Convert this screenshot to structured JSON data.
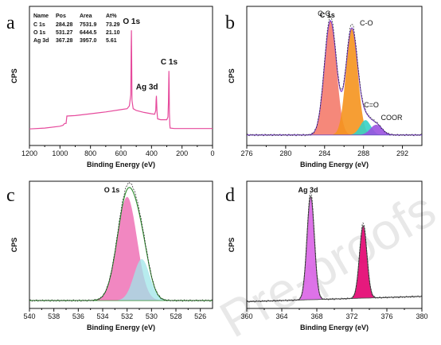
{
  "watermark": "Pre-proofs",
  "colors": {
    "survey": "#e64a9c",
    "envelope_b": "#7b3fd0",
    "envelope_c": "#2e8b2e",
    "envelope_d": "#555555",
    "cc_peak": "#f47b6b",
    "co_peak": "#f5941e",
    "ceqo_peak": "#34d1c7",
    "coor_peak": "#9a52e0",
    "o_peak1": "#f07aba",
    "o_peak2": "#9fe6e8",
    "ag_peak1": "#d963e6",
    "ag_peak2": "#e3006f",
    "background_line": "#6a4fbf"
  },
  "chart_data": [
    {
      "panel": "a",
      "type": "line",
      "xlabel": "Binding Energy (eV)",
      "ylabel": "CPS",
      "xlim": [
        1200,
        0
      ],
      "xticks": [
        1200,
        1000,
        800,
        600,
        400,
        200,
        0
      ],
      "x_reversed": true,
      "series": [
        {
          "x": [
            1200,
            1100,
            1000,
            980,
            970,
            960,
            955,
            900,
            800,
            700,
            600,
            560,
            545,
            536,
            533,
            531.5,
            530,
            528,
            520,
            500,
            450,
            400,
            380,
            372,
            370,
            368,
            366,
            364,
            360,
            340,
            300,
            292,
            289,
            286,
            284.5,
            283,
            280,
            278,
            250,
            100,
            0
          ],
          "y": [
            11,
            12,
            14,
            15,
            17,
            17,
            25,
            25.5,
            27.5,
            29.5,
            32,
            33,
            36,
            48,
            100,
            118,
            90,
            42,
            33,
            31,
            29,
            27.5,
            27,
            31,
            42,
            47,
            40,
            30,
            22,
            21,
            21,
            24,
            40,
            74,
            60,
            29,
            16,
            12,
            11.5,
            11.5,
            11.5
          ]
        }
      ],
      "peak_labels": [
        "O 1s",
        "Ag 3d",
        "C 1s"
      ],
      "table": {
        "headers": [
          "Name",
          "Pos",
          "Area",
          "At%"
        ],
        "rows": [
          [
            "C 1s",
            "284.28",
            "7531.9",
            "73.29"
          ],
          [
            "O 1s",
            "531.27",
            "6444.5",
            "21.10"
          ],
          [
            "Ag 3d",
            "367.28",
            "3957.0",
            "5.61"
          ]
        ]
      }
    },
    {
      "panel": "b",
      "type": "area",
      "title": "C 1s",
      "xlabel": "Binding Energy (eV)",
      "ylabel": "CPS",
      "xlim": [
        276,
        294
      ],
      "xticks": [
        276,
        280,
        284,
        288,
        292
      ],
      "series": [
        {
          "name": "C-C",
          "center": 284.6,
          "height": 100,
          "sigma": 0.62
        },
        {
          "name": "C-O",
          "center": 286.8,
          "height": 93,
          "sigma": 0.6
        },
        {
          "name": "C=O",
          "center": 288.2,
          "height": 13,
          "sigma": 0.55
        },
        {
          "name": "COOR",
          "center": 289.3,
          "height": 9,
          "sigma": 0.6
        }
      ],
      "baseline": 5
    },
    {
      "panel": "c",
      "type": "area",
      "title": "O 1s",
      "xlabel": "Binding Energy (eV)",
      "ylabel": "CPS",
      "xlim": [
        540,
        525
      ],
      "xticks": [
        540,
        538,
        536,
        534,
        532,
        530,
        528,
        526
      ],
      "x_reversed": true,
      "series": [
        {
          "name": "",
          "center": 532.0,
          "height": 100,
          "sigma": 0.8
        },
        {
          "name": "",
          "center": 530.8,
          "height": 40,
          "sigma": 0.65
        }
      ],
      "baseline": 3
    },
    {
      "panel": "d",
      "type": "area",
      "title": "Ag 3d",
      "xlabel": "Binding Energy (eV)",
      "ylabel": "CPS",
      "xlim": [
        360,
        380
      ],
      "xticks": [
        360,
        364,
        368,
        372,
        376,
        380
      ],
      "series": [
        {
          "name": "",
          "center": 367.3,
          "height": 100,
          "sigma": 0.42
        },
        {
          "name": "",
          "center": 373.3,
          "height": 70,
          "sigma": 0.42
        }
      ],
      "baseline_start": 2,
      "baseline_end": 7
    }
  ]
}
